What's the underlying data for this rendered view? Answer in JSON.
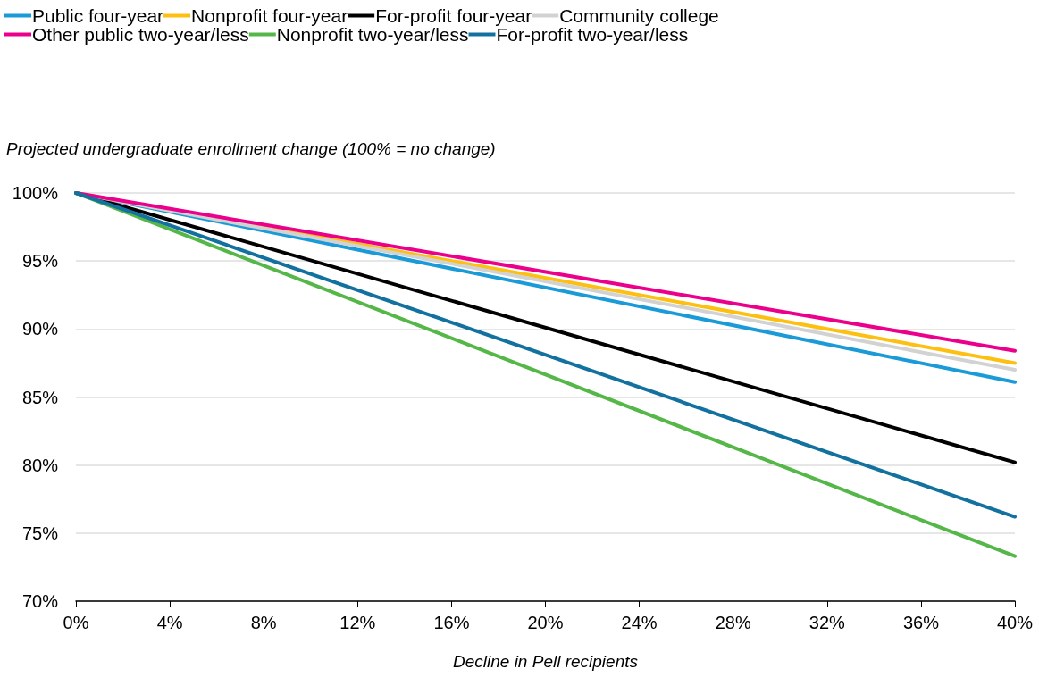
{
  "chart_data": {
    "type": "line",
    "xlabel": "Decline in Pell recipients",
    "ylabel": "Projected undergraduate enrollment change (100% = no change)",
    "xlim": [
      0,
      40
    ],
    "xticks": [
      {
        "value": 0,
        "label": "0%"
      },
      {
        "value": 4,
        "label": "4%"
      },
      {
        "value": 8,
        "label": "8%"
      },
      {
        "value": 12,
        "label": "12%"
      },
      {
        "value": 16,
        "label": "16%"
      },
      {
        "value": 20,
        "label": "20%"
      },
      {
        "value": 24,
        "label": "24%"
      },
      {
        "value": 28,
        "label": "28%"
      },
      {
        "value": 32,
        "label": "32%"
      },
      {
        "value": 36,
        "label": "36%"
      },
      {
        "value": 40,
        "label": "40%"
      }
    ],
    "ylim": [
      70,
      100
    ],
    "yticks": [
      {
        "value": 70,
        "label": "70%"
      },
      {
        "value": 75,
        "label": "75%"
      },
      {
        "value": 80,
        "label": "80%"
      },
      {
        "value": 85,
        "label": "85%"
      },
      {
        "value": 90,
        "label": "90%"
      },
      {
        "value": 95,
        "label": "95%"
      },
      {
        "value": 100,
        "label": "100%"
      }
    ],
    "x": [
      0,
      40
    ],
    "series": [
      {
        "name": "Public four-year",
        "color": "#1a9bd7",
        "values": [
          100,
          86.1
        ]
      },
      {
        "name": "Nonprofit four-year",
        "color": "#fdbf11",
        "values": [
          100,
          87.5
        ]
      },
      {
        "name": "For-profit four-year",
        "color": "#000000",
        "values": [
          100,
          80.2
        ]
      },
      {
        "name": "Community college",
        "color": "#d2d2d2",
        "values": [
          100,
          87.0
        ]
      },
      {
        "name": "Other public two-year/less",
        "color": "#ec008b",
        "values": [
          100,
          88.4
        ]
      },
      {
        "name": "Nonprofit two-year/less",
        "color": "#55b748",
        "values": [
          100,
          73.3
        ]
      },
      {
        "name": "For-profit two-year/less",
        "color": "#12719e",
        "values": [
          100,
          76.2
        ]
      }
    ],
    "grid": "y",
    "legend": "top left",
    "marker": "none",
    "line_style": "solid"
  }
}
